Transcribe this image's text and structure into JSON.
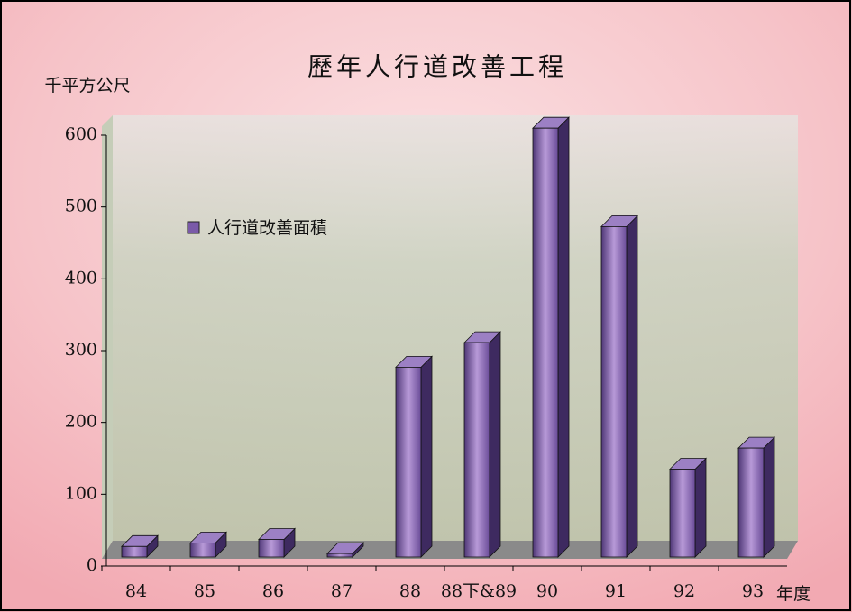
{
  "chart_data": {
    "type": "bar3d",
    "title": "歷年人行道改善工程",
    "y_axis_label": "千平方公尺",
    "x_axis_label": "年度",
    "categories": [
      "84",
      "85",
      "86",
      "87",
      "88",
      "88下&89",
      "90",
      "91",
      "92",
      "93"
    ],
    "series": [
      {
        "name": "人行道改善面積",
        "color": "#7a5aa8",
        "values": [
          15,
          20,
          25,
          5,
          270,
          305,
          610,
          470,
          125,
          155
        ]
      }
    ],
    "ylim": [
      0,
      600
    ],
    "yticks": [
      0,
      100,
      200,
      300,
      400,
      500,
      600
    ]
  }
}
